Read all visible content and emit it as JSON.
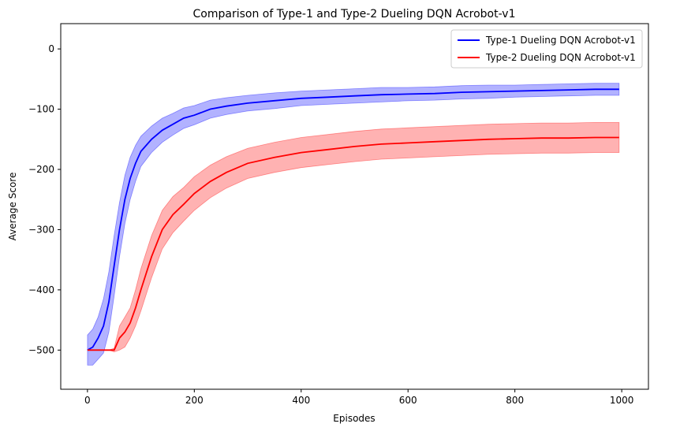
{
  "chart_data": {
    "type": "line",
    "title": "Comparison of Type-1 and Type-2 Dueling DQN Acrobot-v1",
    "xlabel": "Episodes",
    "ylabel": "Average Score",
    "xlim": [
      -50,
      1050
    ],
    "ylim": [
      -565,
      42
    ],
    "xticks": [
      0,
      200,
      400,
      600,
      800,
      1000
    ],
    "yticks": [
      -500,
      -400,
      -300,
      -200,
      -100,
      0
    ],
    "xtick_labels": [
      "0",
      "200",
      "400",
      "600",
      "800",
      "1000"
    ],
    "ytick_labels": [
      "−500",
      "−400",
      "−300",
      "−200",
      "−100",
      "0"
    ],
    "grid": false,
    "legend_position": "top-right",
    "series": [
      {
        "name": "Type-1 Dueling DQN Acrobot-v1",
        "color": "#0000ff",
        "x": [
          0,
          10,
          20,
          30,
          40,
          50,
          60,
          70,
          80,
          90,
          100,
          120,
          140,
          160,
          180,
          200,
          230,
          260,
          300,
          350,
          400,
          450,
          500,
          550,
          600,
          650,
          700,
          750,
          800,
          850,
          900,
          950,
          995
        ],
        "y": [
          -500,
          -495,
          -480,
          -460,
          -420,
          -360,
          -300,
          -250,
          -215,
          -190,
          -170,
          -150,
          -135,
          -125,
          -115,
          -110,
          -100,
          -95,
          -90,
          -86,
          -82,
          -80,
          -78,
          -76,
          -75,
          -74,
          -72,
          -71,
          -70,
          -69,
          -68,
          -67,
          -67
        ],
        "band": [
          25,
          30,
          35,
          45,
          50,
          50,
          45,
          40,
          35,
          30,
          25,
          22,
          20,
          18,
          17,
          16,
          15,
          14,
          13,
          13,
          12,
          12,
          12,
          12,
          11,
          11,
          11,
          11,
          10,
          10,
          10,
          10,
          10
        ]
      },
      {
        "name": "Type-2 Dueling DQN Acrobot-v1",
        "color": "#ff0000",
        "x": [
          0,
          10,
          20,
          30,
          40,
          50,
          60,
          70,
          80,
          90,
          100,
          120,
          140,
          160,
          180,
          200,
          230,
          260,
          300,
          350,
          400,
          450,
          500,
          550,
          600,
          650,
          700,
          750,
          800,
          850,
          900,
          950,
          995
        ],
        "y": [
          -500,
          -500,
          -500,
          -500,
          -500,
          -500,
          -480,
          -470,
          -455,
          -430,
          -400,
          -345,
          -300,
          -275,
          -258,
          -240,
          -220,
          -205,
          -190,
          -180,
          -172,
          -167,
          -162,
          -158,
          -156,
          -154,
          -152,
          -150,
          -149,
          -148,
          -148,
          -147,
          -147
        ],
        "band": [
          0,
          0,
          0,
          0,
          0,
          3,
          20,
          25,
          25,
          30,
          35,
          35,
          32,
          30,
          28,
          28,
          27,
          26,
          25,
          25,
          25,
          25,
          25,
          25,
          25,
          25,
          25,
          25,
          25,
          25,
          25,
          25,
          25
        ]
      }
    ]
  }
}
